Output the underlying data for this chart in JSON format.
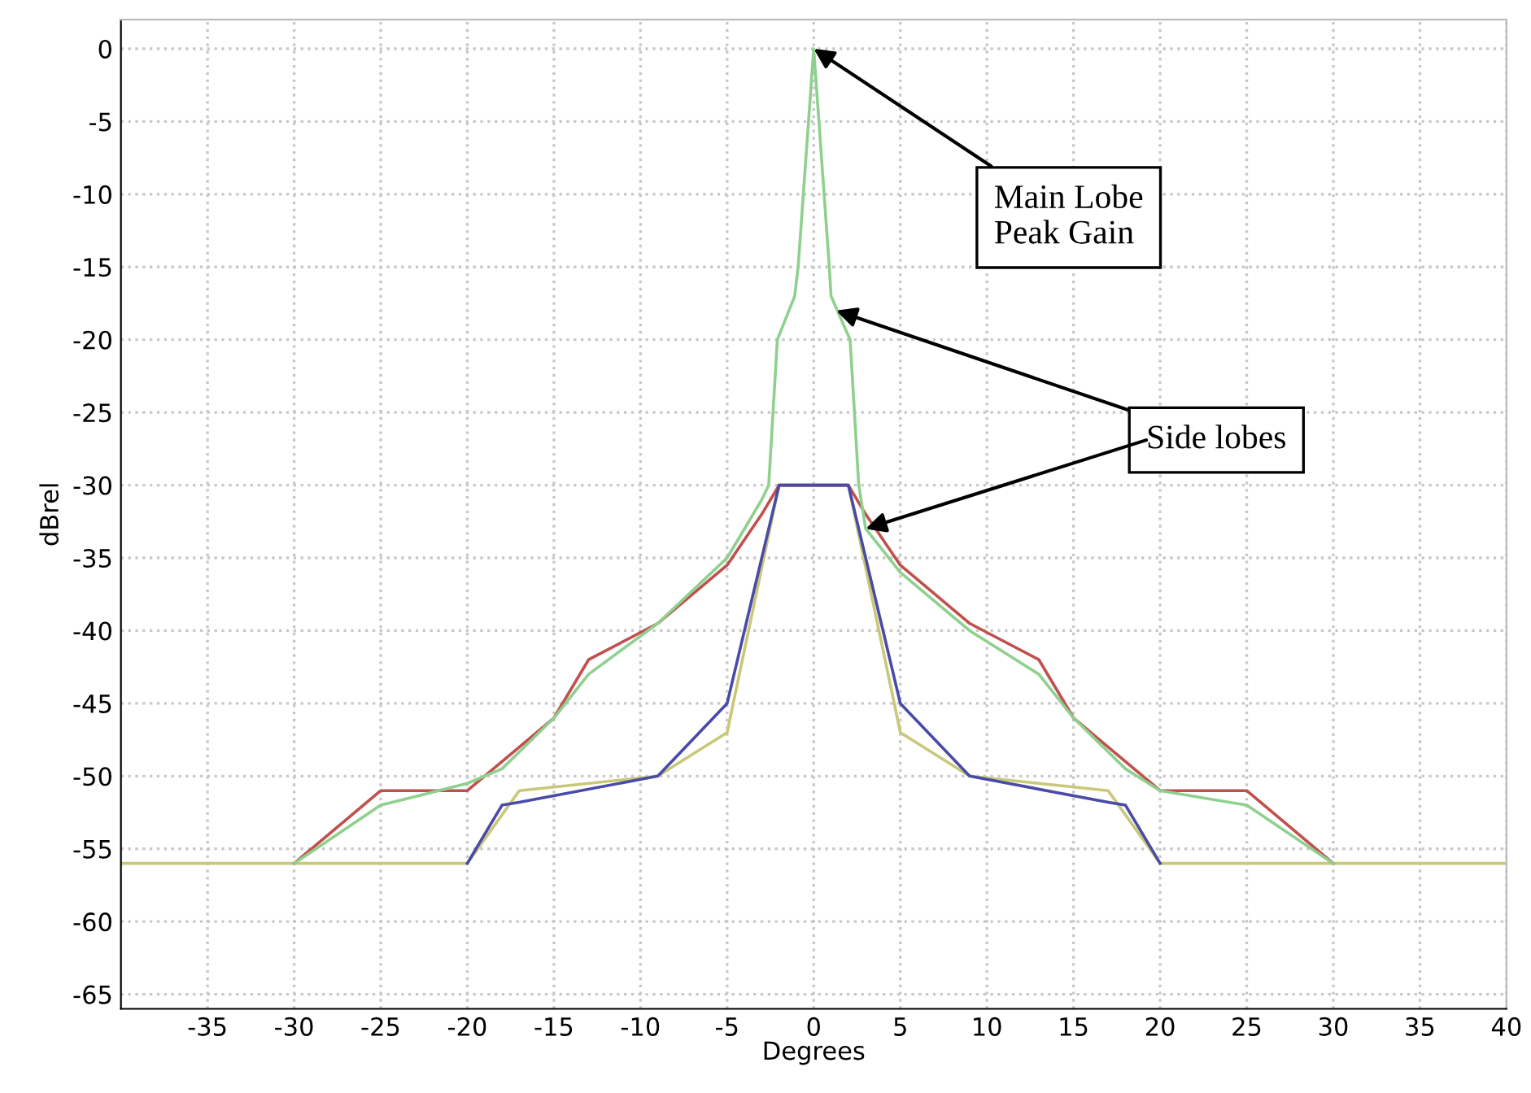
{
  "chart_data": {
    "type": "line",
    "xlabel": "Degrees",
    "ylabel": "dBrel",
    "xlim": [
      -40,
      40
    ],
    "ylim": [
      -66,
      2
    ],
    "xticks": [
      -35,
      -30,
      -25,
      -20,
      -15,
      -10,
      -5,
      0,
      5,
      10,
      15,
      20,
      25,
      30,
      35,
      40
    ],
    "yticks": [
      0,
      -5,
      -10,
      -15,
      -20,
      -25,
      -30,
      -35,
      -40,
      -45,
      -50,
      -55,
      -60,
      -65
    ],
    "grid": true,
    "legend": false,
    "marker": "none",
    "line_style": "solid",
    "series": [
      {
        "color": "#c8c878",
        "x": [
          -40,
          -20,
          -17,
          -9,
          -5,
          -2,
          2,
          5,
          9,
          17,
          20,
          40
        ],
        "values": [
          -56,
          -56,
          -51,
          -50,
          -47,
          -30,
          -30,
          -47,
          -50,
          -51,
          -56,
          -56
        ]
      },
      {
        "color": "#c0504d",
        "x": [
          -30,
          -25,
          -20,
          -17,
          -15,
          -13,
          -9,
          -5,
          -3,
          -2,
          2,
          3,
          5,
          9,
          13,
          15,
          17,
          20,
          25,
          30
        ],
        "values": [
          -56,
          -51,
          -51,
          -48,
          -46,
          -42,
          -39.5,
          -35.5,
          -32,
          -30,
          -30,
          -32,
          -35.5,
          -39.5,
          -42,
          -46,
          -48,
          -51,
          -51,
          -56
        ]
      },
      {
        "color": "#4a4aa8",
        "x": [
          -20,
          -18,
          -17,
          -9,
          -5,
          -4,
          -2,
          2,
          4,
          5,
          9,
          17,
          18,
          20
        ],
        "values": [
          -56,
          -52,
          -51.8,
          -50,
          -45,
          -40,
          -30,
          -30,
          -40,
          -45,
          -50,
          -51.8,
          -52,
          -56
        ]
      },
      {
        "color": "#8fd08f",
        "x": [
          -30,
          -25,
          -20,
          -18,
          -15,
          -13,
          -9,
          -5,
          -3,
          -2.6,
          -2.1,
          -1.1,
          -0.9,
          -0.6,
          -0.3,
          0,
          0.3,
          0.6,
          0.9,
          1,
          2.1,
          2.6,
          3,
          5,
          9,
          13,
          15,
          18,
          20,
          25,
          30
        ],
        "values": [
          -56,
          -52,
          -50.5,
          -49.5,
          -46,
          -43,
          -39.5,
          -35,
          -31,
          -30,
          -20,
          -17,
          -15,
          -10,
          -5,
          0,
          -5,
          -10,
          -15,
          -17,
          -20,
          -30,
          -33,
          -36,
          -40,
          -43,
          -46,
          -49.5,
          -51,
          -52,
          -56
        ]
      }
    ],
    "annotations": [
      {
        "text": "Main Lobe\nPeak Gain",
        "x": 0,
        "y": 0
      },
      {
        "text": "Side lobes",
        "x": 1.3,
        "y": -18
      }
    ]
  }
}
